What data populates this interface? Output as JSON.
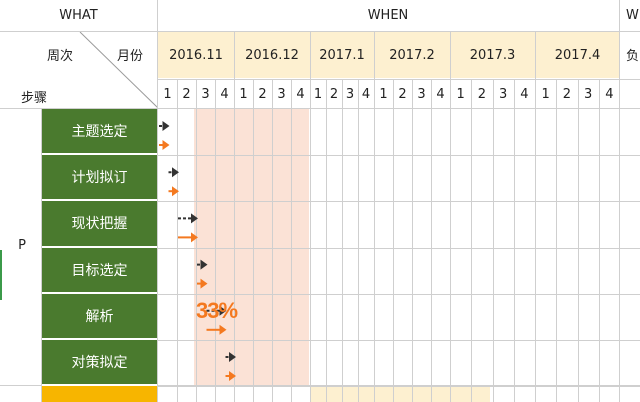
{
  "header": {
    "what_label": "WHAT",
    "when_label": "WHEN",
    "who_partial": "W",
    "owner_partial": "负",
    "week_col_label": "周次",
    "month_col_label": "月份",
    "step_col_label": "步骤"
  },
  "months": [
    "2016.11",
    "2016.12",
    "2017.1",
    "2017.2",
    "2017.3",
    "2017.4"
  ],
  "weeks": [
    "1",
    "2",
    "3",
    "4",
    "1",
    "2",
    "3",
    "4",
    "1",
    "2",
    "3",
    "4",
    "1",
    "2",
    "3",
    "4",
    "1",
    "2",
    "3",
    "4",
    "1",
    "2",
    "3",
    "4"
  ],
  "phase": {
    "label": "P"
  },
  "steps": [
    {
      "label": "主题选定"
    },
    {
      "label": "计划拟订"
    },
    {
      "label": "现状把握"
    },
    {
      "label": "目标选定"
    },
    {
      "label": "解析"
    },
    {
      "label": "对策拟定"
    }
  ],
  "progress": {
    "label": "33%",
    "color": "#f47920"
  },
  "colors": {
    "step_bg": "#4a7a2e",
    "month_bg": "#fdf0d0",
    "shade_bg": "#fbe2d6",
    "actual_arrow": "#f47920",
    "plan_arrow": "#333333",
    "next_step_bg": "#f7b500"
  }
}
